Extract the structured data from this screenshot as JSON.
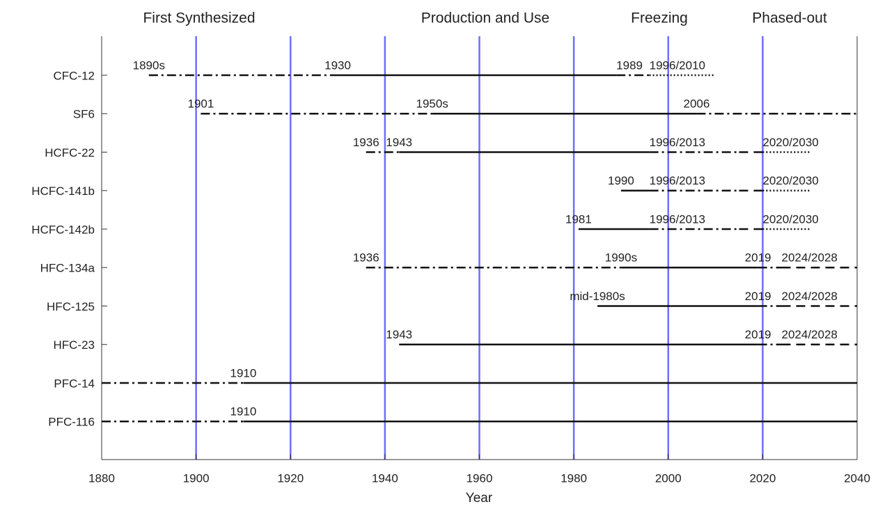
{
  "chart_data": {
    "type": "timeline",
    "phases": [
      {
        "text": "First Synthesized",
        "color": "#2424ff"
      },
      {
        "text": "Production and Use",
        "color": "#111111"
      },
      {
        "text": "Freezing",
        "color": "#e8693c"
      },
      {
        "text": "Phased-out",
        "color": "#ff2020"
      }
    ],
    "xlabel": "Year",
    "xlim": [
      1880,
      2040
    ],
    "xticks": [
      1880,
      1900,
      1920,
      1940,
      1960,
      1980,
      2000,
      2020,
      2040
    ],
    "vlines": [
      1900,
      1920,
      1940,
      1960,
      1980,
      2000,
      2020
    ],
    "vline_color": "#6e6eff",
    "rows": [
      {
        "name": "CFC-12",
        "segments": [
          {
            "start": 1890,
            "end": 1930,
            "style": "dashdot",
            "label": "1890s",
            "phase": 0
          },
          {
            "start": 1930,
            "end": 1989,
            "style": "solid",
            "label": "1930",
            "phase": 1
          },
          {
            "start": 1989,
            "end": 1996,
            "style": "dashdot",
            "label": "1989",
            "phase": 2
          },
          {
            "start": 1996,
            "end": 2010,
            "style": "dotted",
            "label": "1996/2010",
            "phase": 3
          }
        ]
      },
      {
        "name": "SF6",
        "segments": [
          {
            "start": 1901,
            "end": 1950,
            "style": "dashdot",
            "label": "1901",
            "phase": 0
          },
          {
            "start": 1950,
            "end": 2006,
            "style": "solid",
            "label": "1950s",
            "phase": 1
          },
          {
            "start": 2006,
            "end": 2040,
            "style": "dashdot",
            "label": "2006",
            "phase": 1
          }
        ]
      },
      {
        "name": "HCFC-22",
        "segments": [
          {
            "start": 1936,
            "end": 1943,
            "style": "dashdot",
            "label": "1936",
            "phase": 0
          },
          {
            "start": 1943,
            "end": 1996,
            "style": "solid",
            "label": "1943",
            "phase": 1
          },
          {
            "start": 1996,
            "end": 2015,
            "style": "dashdot",
            "label": "1996/2013",
            "phase": 2
          },
          {
            "start": 2015,
            "end": 2020,
            "style": "dash"
          },
          {
            "start": 2020,
            "end": 2030,
            "style": "dotted",
            "label": "2020/2030",
            "phase": 3
          }
        ]
      },
      {
        "name": "HCFC-141b",
        "segments": [
          {
            "start": 1990,
            "end": 1996,
            "style": "solid",
            "label": "1990",
            "phase": 1
          },
          {
            "start": 1996,
            "end": 2015,
            "style": "dashdot",
            "label": "1996/2013",
            "phase": 2
          },
          {
            "start": 2015,
            "end": 2020,
            "style": "dash"
          },
          {
            "start": 2020,
            "end": 2030,
            "style": "dotted",
            "label": "2020/2030",
            "phase": 3
          }
        ]
      },
      {
        "name": "HCFC-142b",
        "segments": [
          {
            "start": 1981,
            "end": 1996,
            "style": "solid",
            "label": "1981",
            "phase": 1
          },
          {
            "start": 1996,
            "end": 2015,
            "style": "dashdot",
            "label": "1996/2013",
            "phase": 2
          },
          {
            "start": 2015,
            "end": 2020,
            "style": "dash"
          },
          {
            "start": 2020,
            "end": 2030,
            "style": "dotted",
            "label": "2020/2030",
            "phase": 3
          }
        ]
      },
      {
        "name": "HFC-134a",
        "segments": [
          {
            "start": 1936,
            "end": 1990,
            "style": "dashdot",
            "label": "1936",
            "phase": 0
          },
          {
            "start": 1990,
            "end": 2019,
            "style": "solid",
            "label": "1990s",
            "phase": 1
          },
          {
            "start": 2019,
            "end": 2024,
            "style": "dashdot",
            "label": "2019",
            "phase": 1
          },
          {
            "start": 2024,
            "end": 2040,
            "style": "dash",
            "label": "2024/2028",
            "phase": 2
          }
        ]
      },
      {
        "name": "HFC-125",
        "segments": [
          {
            "start": 1985,
            "end": 2019,
            "style": "solid",
            "label": "mid-1980s",
            "phase": 1
          },
          {
            "start": 2019,
            "end": 2024,
            "style": "dashdot",
            "label": "2019",
            "phase": 1
          },
          {
            "start": 2024,
            "end": 2040,
            "style": "dash",
            "label": "2024/2028",
            "phase": 2
          }
        ]
      },
      {
        "name": "HFC-23",
        "segments": [
          {
            "start": 1943,
            "end": 2019,
            "style": "solid",
            "label": "1943",
            "phase": 1
          },
          {
            "start": 2019,
            "end": 2024,
            "style": "dashdot",
            "label": "2019",
            "phase": 1
          },
          {
            "start": 2024,
            "end": 2040,
            "style": "dash",
            "label": "2024/2028",
            "phase": 2
          }
        ]
      },
      {
        "name": "PFC-14",
        "segments": [
          {
            "start": 1880,
            "end": 1910,
            "style": "dashdot"
          },
          {
            "start": 1910,
            "end": 2040,
            "style": "solid",
            "label": "1910",
            "phase": 1
          }
        ]
      },
      {
        "name": "PFC-116",
        "segments": [
          {
            "start": 1880,
            "end": 1910,
            "style": "dashdot"
          },
          {
            "start": 1910,
            "end": 2040,
            "style": "solid",
            "label": "1910",
            "phase": 1
          }
        ]
      }
    ]
  }
}
